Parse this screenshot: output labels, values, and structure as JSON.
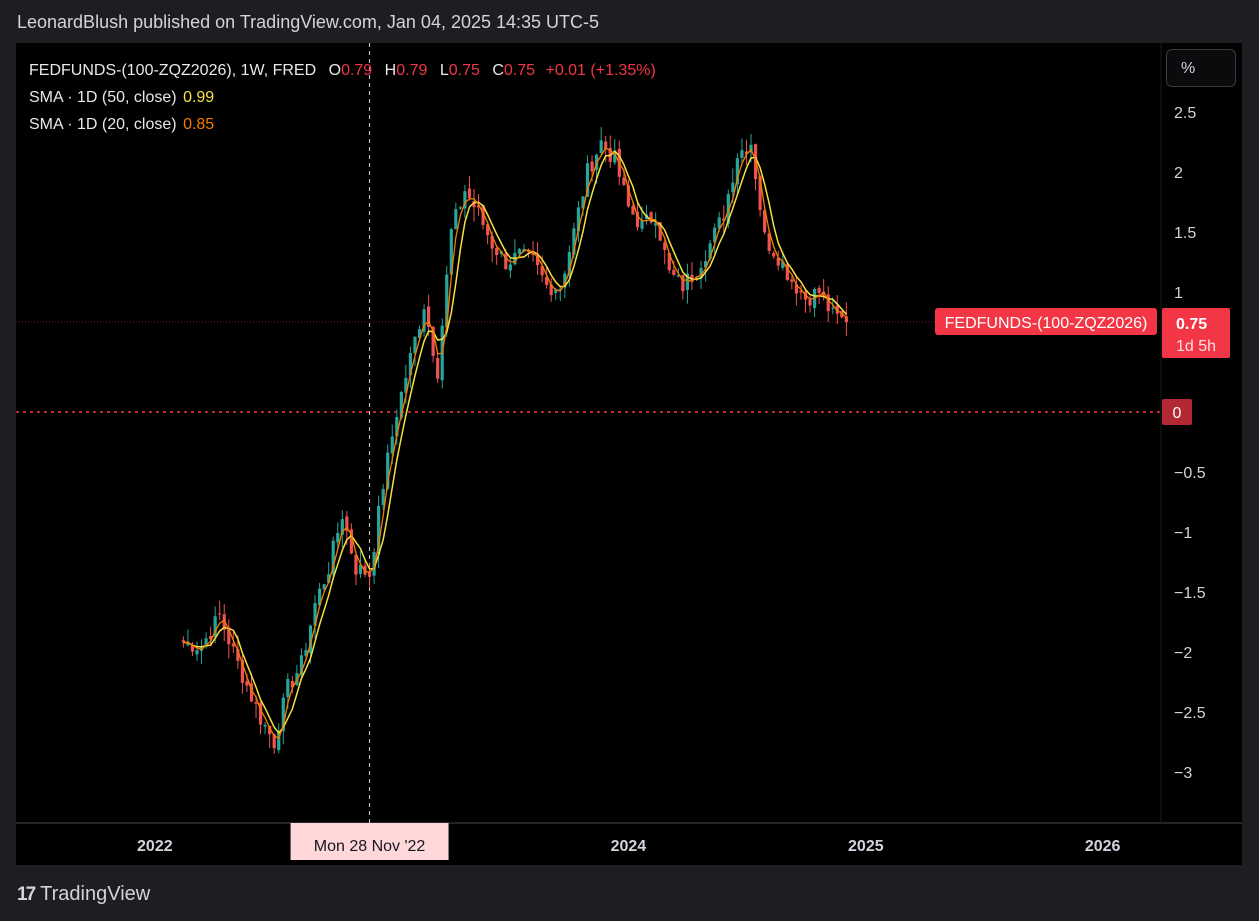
{
  "header": {
    "publisher": "LeonardBlush published on TradingView.com, Jan 04, 2025 14:35 UTC-5"
  },
  "legend": {
    "symbol": "FEDFUNDS-(100-ZQZ2026), 1W, FRED",
    "o_label": "O",
    "o": "0.79",
    "h_label": "H",
    "h": "0.79",
    "l_label": "L",
    "l": "0.75",
    "c_label": "C",
    "c": "0.75",
    "change": "+0.01 (+1.35%)",
    "sma50_label": "SMA · 1D (50, close)",
    "sma50_value": "0.99",
    "sma20_label": "SMA · 1D (20, close)",
    "sma20_value": "0.85"
  },
  "unit_button": "%",
  "price_label": {
    "name": "FEDFUNDS-(100-ZQZ2026)",
    "value": "0.75",
    "countdown": "1d 5h"
  },
  "zero_label": "0",
  "crosshair_label": "Mon 28 Nov '22",
  "brand": {
    "name": "TradingView",
    "logo": "17"
  },
  "colors": {
    "up": "#26a69a",
    "down": "#ef5350",
    "sma50": "#f5e142",
    "sma20": "#f57c00",
    "label": "#f23645"
  },
  "chart_data": {
    "type": "candlestick",
    "title": "FEDFUNDS-(100-ZQZ2026)",
    "interval": "1W",
    "y_ticks": [
      "2.5",
      "2",
      "1.5",
      "1",
      "0.5",
      "0",
      "−0.5",
      "−1",
      "−1.5",
      "−2",
      "−2.5",
      "−3"
    ],
    "x_ticks": [
      "2022",
      "2024",
      "2025",
      "2026"
    ],
    "ylim": [
      -3.3,
      2.85
    ],
    "xlim": [
      "2021-06-01",
      "2026-04-01"
    ],
    "closes": [
      {
        "x": "2022-02-14",
        "c": -1.92
      },
      {
        "x": "2022-03-14",
        "c": -1.95
      },
      {
        "x": "2022-04-11",
        "c": -1.7
      },
      {
        "x": "2022-05-09",
        "c": -2.1
      },
      {
        "x": "2022-06-13",
        "c": -2.55
      },
      {
        "x": "2022-07-04",
        "c": -2.75
      },
      {
        "x": "2022-07-25",
        "c": -2.3
      },
      {
        "x": "2022-08-15",
        "c": -2.1
      },
      {
        "x": "2022-09-05",
        "c": -1.6
      },
      {
        "x": "2022-09-26",
        "c": -1.3
      },
      {
        "x": "2022-10-17",
        "c": -0.85
      },
      {
        "x": "2022-11-07",
        "c": -1.3
      },
      {
        "x": "2022-11-28",
        "c": -1.35
      },
      {
        "x": "2022-12-19",
        "c": -0.6
      },
      {
        "x": "2023-01-09",
        "c": 0.0
      },
      {
        "x": "2023-01-30",
        "c": 0.45
      },
      {
        "x": "2023-02-20",
        "c": 0.9
      },
      {
        "x": "2023-03-13",
        "c": 0.35
      },
      {
        "x": "2023-04-03",
        "c": 1.5
      },
      {
        "x": "2023-04-24",
        "c": 1.85
      },
      {
        "x": "2023-05-15",
        "c": 1.65
      },
      {
        "x": "2023-06-05",
        "c": 1.4
      },
      {
        "x": "2023-06-26",
        "c": 1.25
      },
      {
        "x": "2023-07-17",
        "c": 1.3
      },
      {
        "x": "2023-08-07",
        "c": 1.25
      },
      {
        "x": "2023-08-28",
        "c": 1.05
      },
      {
        "x": "2023-09-18",
        "c": 1.05
      },
      {
        "x": "2023-10-09",
        "c": 1.5
      },
      {
        "x": "2023-10-30",
        "c": 2.0
      },
      {
        "x": "2023-11-20",
        "c": 2.25
      },
      {
        "x": "2023-12-11",
        "c": 2.1
      },
      {
        "x": "2024-01-01",
        "c": 1.7
      },
      {
        "x": "2024-01-22",
        "c": 1.55
      },
      {
        "x": "2024-02-12",
        "c": 1.65
      },
      {
        "x": "2024-03-04",
        "c": 1.15
      },
      {
        "x": "2024-03-25",
        "c": 1.05
      },
      {
        "x": "2024-04-15",
        "c": 1.2
      },
      {
        "x": "2024-05-06",
        "c": 1.4
      },
      {
        "x": "2024-05-27",
        "c": 1.65
      },
      {
        "x": "2024-06-17",
        "c": 2.15
      },
      {
        "x": "2024-07-08",
        "c": 2.25
      },
      {
        "x": "2024-07-29",
        "c": 1.45
      },
      {
        "x": "2024-08-19",
        "c": 1.3
      },
      {
        "x": "2024-09-09",
        "c": 1.1
      },
      {
        "x": "2024-09-30",
        "c": 0.95
      },
      {
        "x": "2024-10-21",
        "c": 1.0
      },
      {
        "x": "2024-11-11",
        "c": 0.8
      },
      {
        "x": "2024-12-02",
        "c": 0.75
      }
    ],
    "last_value": 0.75
  }
}
